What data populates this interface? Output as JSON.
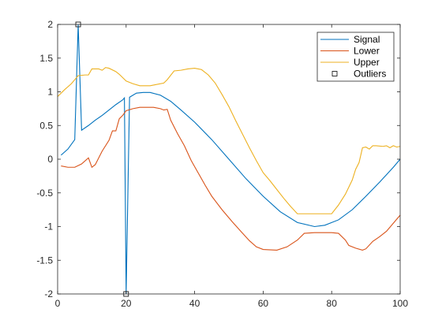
{
  "chart_data": {
    "type": "line",
    "xlim": [
      0,
      100
    ],
    "ylim": [
      -2,
      2
    ],
    "xticks": [
      0,
      20,
      40,
      60,
      80,
      100
    ],
    "xtick_labels": [
      "0",
      "20",
      "40",
      "60",
      "80",
      "100"
    ],
    "yticks": [
      -2,
      -1.5,
      -1,
      -0.5,
      0,
      0.5,
      1,
      1.5,
      2
    ],
    "ytick_labels": [
      "-2",
      "-1.5",
      "-1",
      "-0.5",
      "0",
      "0.5",
      "1",
      "1.5",
      "2"
    ],
    "grid": false,
    "legend_position": "top-right",
    "series": [
      {
        "name": "Signal",
        "color": "#0072BD",
        "marker": "none",
        "points": [
          [
            1,
            0.06
          ],
          [
            3,
            0.15
          ],
          [
            5,
            0.29
          ],
          [
            6,
            2.0
          ],
          [
            7,
            0.43
          ],
          [
            9,
            0.5
          ],
          [
            11,
            0.58
          ],
          [
            13,
            0.65
          ],
          [
            15,
            0.73
          ],
          [
            17,
            0.81
          ],
          [
            19,
            0.88
          ],
          [
            19.5,
            0.91
          ],
          [
            20,
            -2.0
          ],
          [
            21,
            0.92
          ],
          [
            23,
            0.98
          ],
          [
            25,
            0.99
          ],
          [
            27,
            0.99
          ],
          [
            30,
            0.95
          ],
          [
            33,
            0.86
          ],
          [
            36,
            0.73
          ],
          [
            40,
            0.55
          ],
          [
            45,
            0.29
          ],
          [
            50,
            0.0
          ],
          [
            55,
            -0.29
          ],
          [
            60,
            -0.55
          ],
          [
            65,
            -0.78
          ],
          [
            70,
            -0.94
          ],
          [
            75,
            -1.0
          ],
          [
            78,
            -0.98
          ],
          [
            82,
            -0.9
          ],
          [
            86,
            -0.75
          ],
          [
            90,
            -0.55
          ],
          [
            94,
            -0.34
          ],
          [
            98,
            -0.12
          ],
          [
            100,
            0.0
          ]
        ]
      },
      {
        "name": "Lower",
        "color": "#D95319",
        "marker": "none",
        "points": [
          [
            1,
            -0.1
          ],
          [
            3,
            -0.12
          ],
          [
            5,
            -0.12
          ],
          [
            7,
            -0.07
          ],
          [
            9,
            0.02
          ],
          [
            10,
            -0.12
          ],
          [
            11,
            -0.08
          ],
          [
            13,
            0.12
          ],
          [
            15,
            0.28
          ],
          [
            16,
            0.42
          ],
          [
            17,
            0.42
          ],
          [
            18,
            0.6
          ],
          [
            19,
            0.65
          ],
          [
            20,
            0.72
          ],
          [
            22,
            0.75
          ],
          [
            24,
            0.77
          ],
          [
            28,
            0.77
          ],
          [
            30,
            0.75
          ],
          [
            31,
            0.73
          ],
          [
            32,
            0.74
          ],
          [
            33,
            0.58
          ],
          [
            35,
            0.38
          ],
          [
            37,
            0.2
          ],
          [
            39,
            -0.02
          ],
          [
            41,
            -0.2
          ],
          [
            43,
            -0.38
          ],
          [
            45,
            -0.55
          ],
          [
            48,
            -0.75
          ],
          [
            51,
            -0.93
          ],
          [
            54,
            -1.1
          ],
          [
            56,
            -1.21
          ],
          [
            58,
            -1.3
          ],
          [
            60,
            -1.34
          ],
          [
            64,
            -1.35
          ],
          [
            67,
            -1.3
          ],
          [
            70,
            -1.2
          ],
          [
            72,
            -1.1
          ],
          [
            75,
            -1.09
          ],
          [
            80,
            -1.09
          ],
          [
            82,
            -1.1
          ],
          [
            84,
            -1.2
          ],
          [
            85,
            -1.28
          ],
          [
            87,
            -1.32
          ],
          [
            89,
            -1.35
          ],
          [
            90,
            -1.33
          ],
          [
            92,
            -1.22
          ],
          [
            94,
            -1.15
          ],
          [
            96,
            -1.07
          ],
          [
            98,
            -0.95
          ],
          [
            100,
            -0.83
          ]
        ]
      },
      {
        "name": "Upper",
        "color": "#EDB120",
        "marker": "none",
        "points": [
          [
            0,
            0.93
          ],
          [
            2,
            1.03
          ],
          [
            4,
            1.12
          ],
          [
            6,
            1.24
          ],
          [
            8,
            1.25
          ],
          [
            9,
            1.25
          ],
          [
            10,
            1.34
          ],
          [
            12,
            1.34
          ],
          [
            13,
            1.32
          ],
          [
            14,
            1.36
          ],
          [
            15,
            1.35
          ],
          [
            17,
            1.3
          ],
          [
            18,
            1.26
          ],
          [
            20,
            1.16
          ],
          [
            22,
            1.12
          ],
          [
            24,
            1.09
          ],
          [
            27,
            1.09
          ],
          [
            28,
            1.1
          ],
          [
            31,
            1.13
          ],
          [
            32,
            1.18
          ],
          [
            34,
            1.31
          ],
          [
            36,
            1.32
          ],
          [
            38,
            1.34
          ],
          [
            40,
            1.35
          ],
          [
            42,
            1.33
          ],
          [
            44,
            1.25
          ],
          [
            46,
            1.13
          ],
          [
            48,
            0.96
          ],
          [
            50,
            0.78
          ],
          [
            52,
            0.57
          ],
          [
            54,
            0.37
          ],
          [
            56,
            0.17
          ],
          [
            58,
            -0.02
          ],
          [
            60,
            -0.2
          ],
          [
            62,
            -0.32
          ],
          [
            64,
            -0.45
          ],
          [
            66,
            -0.58
          ],
          [
            68,
            -0.7
          ],
          [
            70,
            -0.81
          ],
          [
            72,
            -0.81
          ],
          [
            80,
            -0.81
          ],
          [
            82,
            -0.68
          ],
          [
            84,
            -0.52
          ],
          [
            86,
            -0.31
          ],
          [
            87,
            -0.15
          ],
          [
            88,
            -0.05
          ],
          [
            89,
            0.17
          ],
          [
            90,
            0.18
          ],
          [
            91,
            0.15
          ],
          [
            92,
            0.2
          ],
          [
            93,
            0.2
          ],
          [
            95,
            0.19
          ],
          [
            96,
            0.2
          ],
          [
            97,
            0.17
          ],
          [
            98,
            0.2
          ],
          [
            99,
            0.18
          ],
          [
            100,
            0.19
          ]
        ]
      },
      {
        "name": "Outliers",
        "color": "#000000",
        "marker": "square",
        "line": "none",
        "points": [
          [
            6,
            2.0
          ],
          [
            20,
            -2.0
          ]
        ]
      }
    ]
  }
}
